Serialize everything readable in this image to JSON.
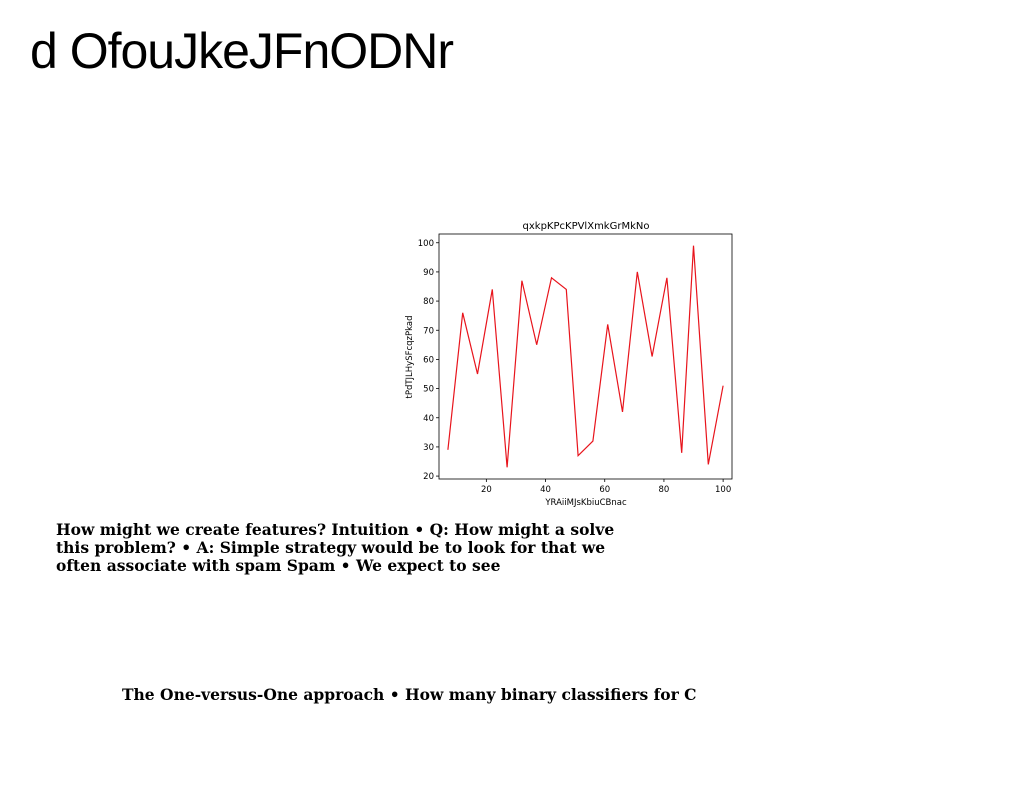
{
  "slide": {
    "title": "d OfouJkeJFnODNr",
    "paragraph": "How might we create features? Intuition • Q: How might a solve this problem? • A: Simple strategy would be to look for that we often associate with spam Spam • We expect to see",
    "footer": "The One-versus-One approach • How many binary classifiers for C"
  },
  "chart_data": {
    "type": "line",
    "title": "qxkpKPcKPVlXmkGrMkNo",
    "xlabel": "YRAiiMJsKbiuCBnac",
    "ylabel": "tPdTJLHySFcqzPkad",
    "xlim": [
      4,
      103
    ],
    "ylim": [
      19,
      103
    ],
    "xticks": [
      20,
      40,
      60,
      80,
      100
    ],
    "yticks": [
      20,
      30,
      40,
      50,
      60,
      70,
      80,
      90,
      100
    ],
    "grid": false,
    "line_color": "#e8141c",
    "series": [
      {
        "x": [
          7,
          12,
          17,
          22,
          27,
          32,
          37,
          42,
          47,
          51,
          56,
          61,
          66,
          71,
          76,
          81,
          86,
          90,
          95,
          100
        ],
        "y": [
          29,
          76,
          55,
          84,
          23,
          87,
          65,
          88,
          84,
          27,
          32,
          72,
          42,
          90,
          61,
          88,
          28,
          99,
          24,
          51
        ]
      }
    ]
  }
}
